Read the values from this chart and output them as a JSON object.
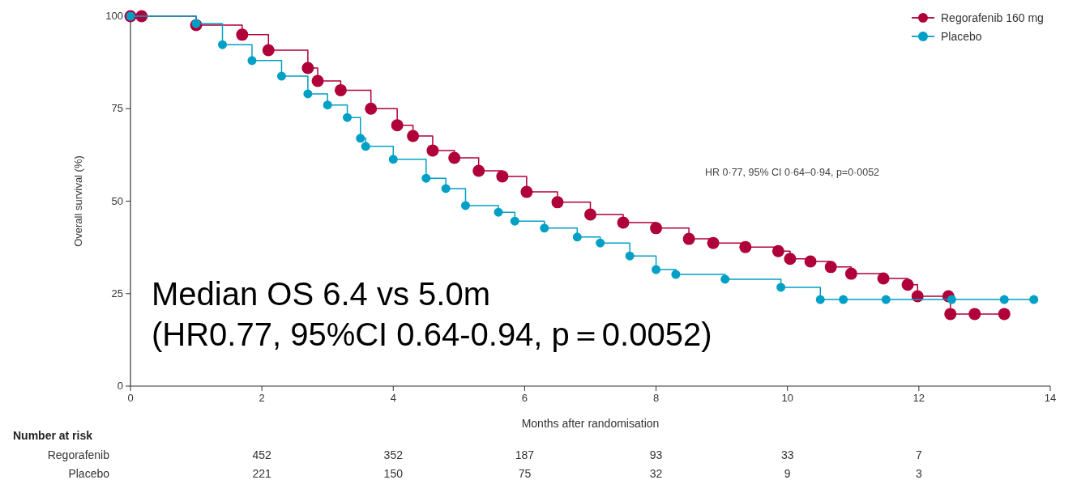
{
  "chart_data": {
    "type": "step",
    "xlabel": "Months after randomisation",
    "ylabel": "Overall survival (%)",
    "xlim": [
      0,
      14
    ],
    "xticks": [
      0,
      2,
      4,
      6,
      8,
      10,
      12,
      14
    ],
    "ylim": [
      0,
      100
    ],
    "yticks": [
      0,
      25,
      50,
      75,
      100
    ],
    "grid": false,
    "legend": "top right",
    "marker": "circle",
    "line_style": "solid",
    "series": [
      {
        "name": "Regorafenib 160 mg",
        "color": "#b0003a",
        "x": [
          0,
          0.17,
          1.0,
          1.7,
          2.1,
          2.7,
          2.85,
          3.2,
          3.66,
          4.06,
          4.3,
          4.6,
          4.93,
          5.3,
          5.66,
          6.03,
          6.5,
          7.0,
          7.5,
          8.0,
          8.5,
          8.87,
          9.36,
          9.86,
          10.04,
          10.35,
          10.66,
          10.97,
          11.46,
          11.83,
          11.98,
          12.45,
          12.48,
          12.85,
          13.3
        ],
        "values": [
          100,
          100,
          97.6,
          95,
          90.8,
          86,
          82.5,
          80,
          75,
          70.5,
          67.6,
          63.7,
          61.7,
          58.2,
          56.7,
          52.5,
          49.7,
          46.4,
          44.2,
          42.7,
          39.8,
          38.7,
          37.6,
          36.5,
          34.4,
          33.7,
          32.2,
          30.4,
          29.1,
          27.4,
          24.3,
          24.3,
          19.5,
          19.5,
          19.5
        ]
      },
      {
        "name": "Placebo",
        "color": "#00a0c6",
        "x": [
          0,
          1.0,
          1.4,
          1.85,
          2.3,
          2.7,
          3.0,
          3.3,
          3.5,
          3.58,
          4.0,
          4.5,
          4.8,
          5.1,
          5.6,
          5.85,
          6.3,
          6.8,
          7.15,
          7.6,
          8.0,
          8.3,
          9.05,
          9.9,
          10.5,
          10.85,
          11.5,
          12.5,
          13.3,
          13.75
        ],
        "values": [
          100,
          98,
          92.3,
          88,
          83.8,
          79,
          76,
          72.6,
          67,
          64.8,
          61.3,
          56.2,
          53.4,
          48.8,
          47,
          44.6,
          42.7,
          40.3,
          38.7,
          35.2,
          31.5,
          30.2,
          28.9,
          26.7,
          23.4,
          23.4,
          23.4,
          23.4,
          23.4,
          23.4
        ]
      }
    ],
    "annotations": [
      "HR 0·77, 95% CI 0·64–0·94, p=0·0052",
      "Median OS 6.4 vs 5.0m\n(HR0.77, 95%CI 0.64-0.94, p＝0.0052)",
      "Number at risk",
      "Regorafenib",
      "452",
      "352",
      "187",
      "93",
      "33",
      "7",
      "Placebo",
      "221",
      "150",
      "75",
      "32",
      "9",
      "3"
    ]
  }
}
